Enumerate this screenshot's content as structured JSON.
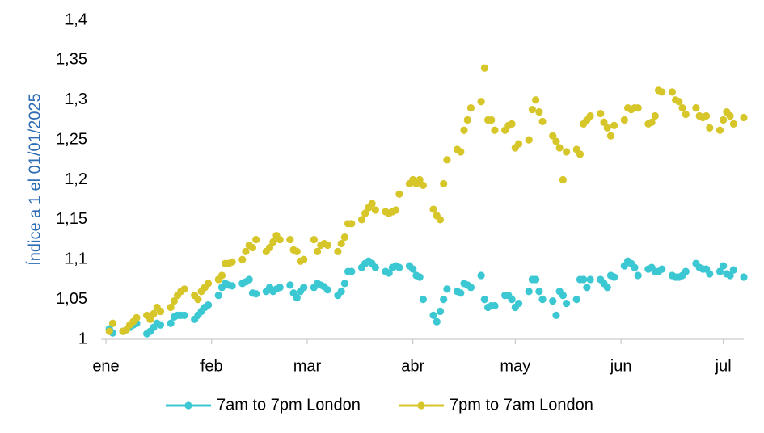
{
  "chart_data": {
    "type": "scatter",
    "y_label": "Índice a 1 el 01/01/2025",
    "x": [
      1,
      2,
      5,
      6,
      7,
      8,
      9,
      12,
      13,
      14,
      15,
      16,
      19,
      20,
      21,
      22,
      23,
      26,
      27,
      28,
      29,
      30,
      33,
      34,
      35,
      36,
      37,
      40,
      41,
      42,
      43,
      44,
      47,
      48,
      49,
      50,
      51,
      54,
      55,
      56,
      57,
      58,
      61,
      62,
      63,
      64,
      65,
      68,
      69,
      70,
      71,
      72,
      75,
      76,
      77,
      78,
      79,
      82,
      83,
      84,
      85,
      86,
      89,
      90,
      91,
      92,
      93,
      96,
      97,
      98,
      99,
      100,
      103,
      104,
      105,
      106,
      107,
      110,
      111,
      112,
      113,
      114,
      117,
      118,
      119,
      120,
      121,
      124,
      125,
      126,
      127,
      128,
      131,
      132,
      133,
      134,
      135,
      138,
      139,
      140,
      141,
      142,
      145,
      146,
      147,
      148,
      149,
      152,
      153,
      154,
      155,
      156,
      159,
      160,
      161,
      162,
      163,
      166,
      167,
      168,
      169,
      170,
      173,
      174,
      175,
      176,
      177,
      180,
      181,
      182,
      183,
      184,
      187
    ],
    "series": [
      {
        "name": "7am to 7pm London",
        "color": "#3cc8d2",
        "values": [
          1.013,
          1.008,
          1.01,
          1.012,
          1.015,
          1.018,
          1.02,
          1.007,
          1.01,
          1.015,
          1.02,
          1.018,
          1.02,
          1.028,
          1.03,
          1.03,
          1.03,
          1.025,
          1.03,
          1.035,
          1.04,
          1.043,
          1.055,
          1.065,
          1.07,
          1.068,
          1.067,
          1.07,
          1.072,
          1.075,
          1.058,
          1.057,
          1.06,
          1.065,
          1.06,
          1.063,
          1.065,
          1.068,
          1.058,
          1.052,
          1.06,
          1.065,
          1.065,
          1.07,
          1.068,
          1.066,
          1.062,
          1.055,
          1.06,
          1.07,
          1.085,
          1.085,
          1.09,
          1.095,
          1.098,
          1.095,
          1.09,
          1.085,
          1.083,
          1.09,
          1.092,
          1.09,
          1.092,
          1.088,
          1.08,
          1.078,
          1.05,
          1.03,
          1.022,
          1.035,
          1.05,
          1.063,
          1.06,
          1.058,
          1.07,
          1.068,
          1.065,
          1.08,
          1.05,
          1.04,
          1.042,
          1.042,
          1.055,
          1.055,
          1.05,
          1.04,
          1.045,
          1.06,
          1.075,
          1.075,
          1.06,
          1.05,
          1.048,
          1.03,
          1.06,
          1.055,
          1.045,
          1.05,
          1.075,
          1.075,
          1.065,
          1.075,
          1.075,
          1.07,
          1.065,
          1.08,
          1.078,
          1.092,
          1.098,
          1.095,
          1.09,
          1.08,
          1.088,
          1.09,
          1.085,
          1.085,
          1.088,
          1.08,
          1.078,
          1.078,
          1.08,
          1.085,
          1.095,
          1.09,
          1.088,
          1.088,
          1.082,
          1.085,
          1.092,
          1.082,
          1.08,
          1.087,
          1.078
        ]
      },
      {
        "name": "7pm to 7am London",
        "color": "#d6c62a",
        "values": [
          1.01,
          1.02,
          1.01,
          1.012,
          1.018,
          1.022,
          1.027,
          1.03,
          1.025,
          1.032,
          1.04,
          1.035,
          1.04,
          1.048,
          1.055,
          1.06,
          1.063,
          1.055,
          1.05,
          1.06,
          1.065,
          1.07,
          1.075,
          1.08,
          1.095,
          1.095,
          1.097,
          1.1,
          1.11,
          1.118,
          1.115,
          1.125,
          1.11,
          1.115,
          1.122,
          1.13,
          1.125,
          1.125,
          1.112,
          1.11,
          1.098,
          1.1,
          1.125,
          1.11,
          1.118,
          1.12,
          1.118,
          1.11,
          1.12,
          1.128,
          1.145,
          1.145,
          1.15,
          1.158,
          1.165,
          1.17,
          1.162,
          1.16,
          1.158,
          1.16,
          1.162,
          1.182,
          1.195,
          1.2,
          1.195,
          1.2,
          1.193,
          1.163,
          1.155,
          1.15,
          1.195,
          1.225,
          1.238,
          1.235,
          1.262,
          1.275,
          1.29,
          1.298,
          1.34,
          1.275,
          1.275,
          1.262,
          1.262,
          1.268,
          1.27,
          1.24,
          1.245,
          1.25,
          1.288,
          1.3,
          1.285,
          1.273,
          1.255,
          1.248,
          1.24,
          1.2,
          1.235,
          1.238,
          1.232,
          1.27,
          1.275,
          1.28,
          1.283,
          1.272,
          1.265,
          1.255,
          1.268,
          1.275,
          1.29,
          1.288,
          1.29,
          1.29,
          1.27,
          1.272,
          1.28,
          1.312,
          1.31,
          1.31,
          1.3,
          1.298,
          1.29,
          1.282,
          1.29,
          1.28,
          1.278,
          1.28,
          1.265,
          1.262,
          1.275,
          1.285,
          1.28,
          1.27,
          1.278
        ]
      }
    ],
    "xlim": [
      0,
      187
    ],
    "xticks": [
      {
        "value": 0,
        "label": "ene"
      },
      {
        "value": 31,
        "label": "feb"
      },
      {
        "value": 59,
        "label": "mar"
      },
      {
        "value": 90,
        "label": "abr"
      },
      {
        "value": 120,
        "label": "may"
      },
      {
        "value": 151,
        "label": "jun"
      },
      {
        "value": 181,
        "label": "jul"
      }
    ],
    "ylim": [
      1,
      1.4
    ],
    "yticks": [
      1,
      {
        "value": 1.05,
        "label": "1,05"
      },
      {
        "value": 1.1,
        "label": "1,1"
      },
      {
        "value": 1.15,
        "label": "1,15"
      },
      {
        "value": 1.2,
        "label": "1,2"
      },
      {
        "value": 1.25,
        "label": "1,25"
      },
      {
        "value": 1.3,
        "label": "1,3"
      },
      {
        "value": 1.35,
        "label": "1,35"
      },
      {
        "value": 1.4,
        "label": "1,4"
      }
    ],
    "legend": "bottom"
  }
}
